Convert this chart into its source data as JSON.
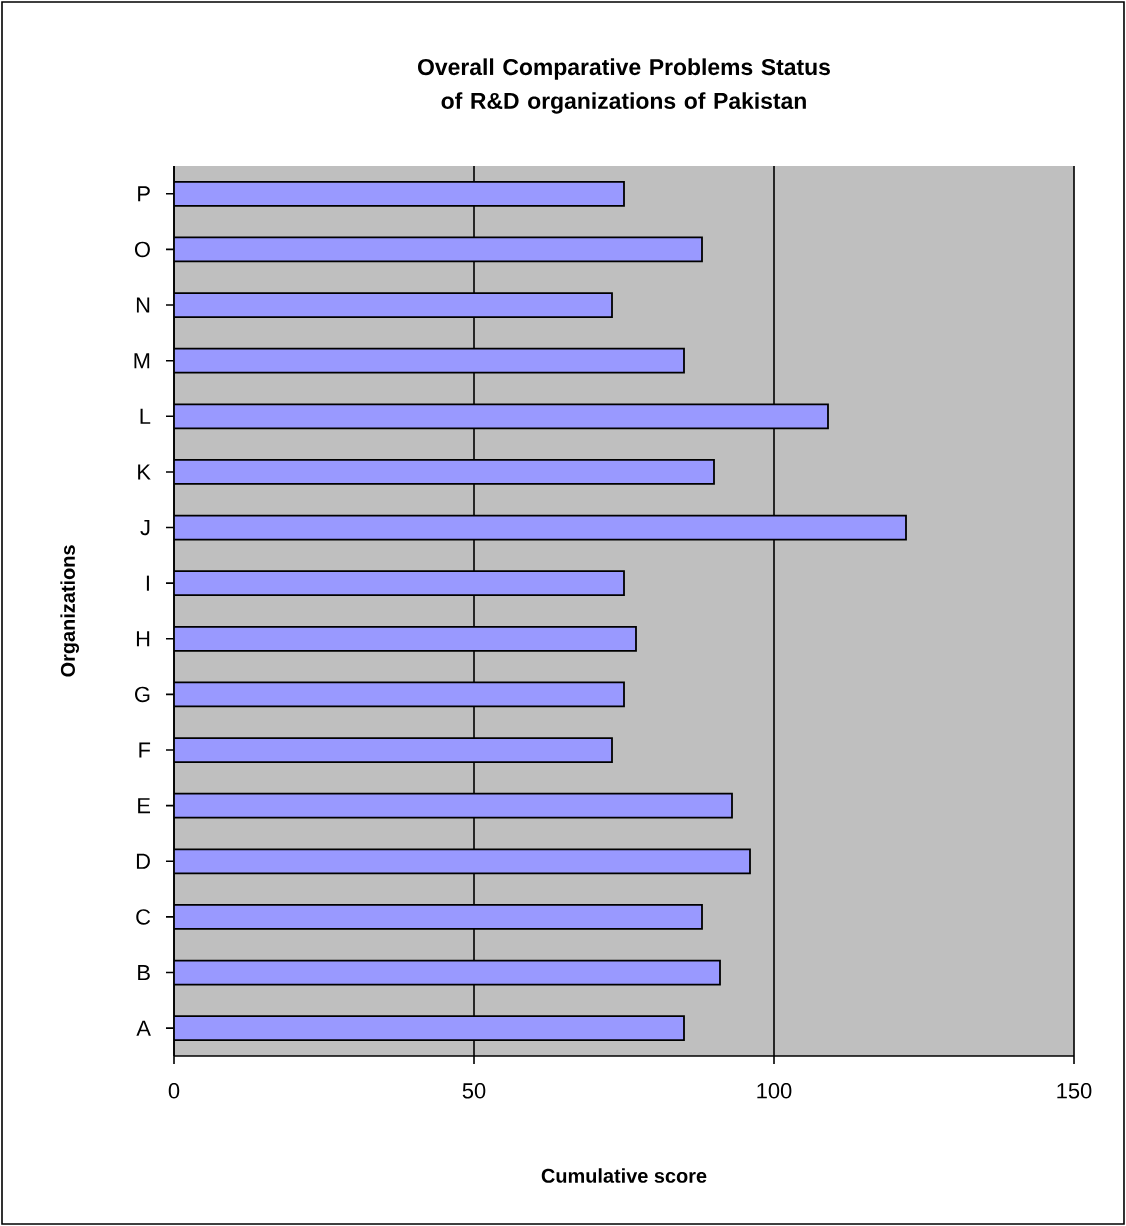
{
  "chart_data": {
    "type": "bar",
    "orientation": "horizontal",
    "title": "Overall Comparative Problems Status of R&D organizations of Pakistan",
    "xlabel": "Cumulative score",
    "ylabel": "Organizations",
    "categories": [
      "P",
      "O",
      "N",
      "M",
      "L",
      "K",
      "J",
      "I",
      "H",
      "G",
      "F",
      "E",
      "D",
      "C",
      "B",
      "A"
    ],
    "values": [
      75,
      88,
      73,
      85,
      109,
      90,
      122,
      75,
      77,
      75,
      73,
      93,
      96,
      88,
      91,
      85
    ],
    "color": "#9999ff",
    "xlim": [
      0,
      150
    ],
    "xticks": [
      0,
      50,
      100,
      150
    ],
    "grid": "x"
  }
}
